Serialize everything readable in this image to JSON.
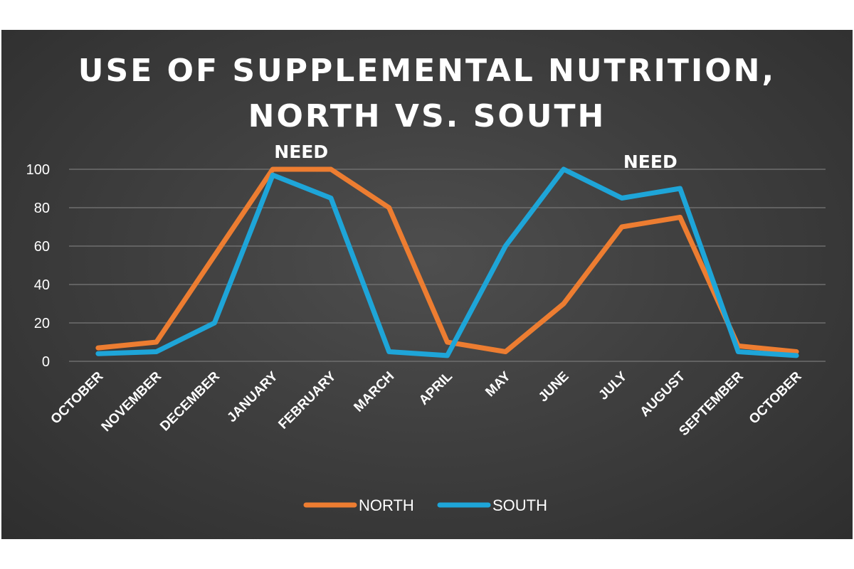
{
  "chart_data": {
    "type": "line",
    "title_lines": [
      "USE OF SUPPLEMENTAL NUTRITION,",
      "NORTH VS. SOUTH"
    ],
    "categories": [
      "OCTOBER",
      "NOVEMBER",
      "DECEMBER",
      "JANUARY",
      "FEBRUARY",
      "MARCH",
      "APRIL",
      "MAY",
      "JUNE",
      "JULY",
      "AUGUST",
      "SEPTEMBER",
      "OCTOBER"
    ],
    "series": [
      {
        "name": "NORTH",
        "color": "#ed7d31",
        "values": [
          7,
          10,
          55,
          100,
          100,
          80,
          10,
          5,
          30,
          70,
          75,
          8,
          5
        ]
      },
      {
        "name": "SOUTH",
        "color": "#1ea5d8",
        "values": [
          4,
          5,
          20,
          97,
          85,
          5,
          3,
          60,
          100,
          85,
          90,
          5,
          3
        ]
      }
    ],
    "ylim": [
      0,
      100
    ],
    "yticks": [
      0,
      20,
      40,
      60,
      80,
      100
    ],
    "grid": true,
    "legend_position": "bottom",
    "annotations": [
      {
        "text": "NEED",
        "category_index": 3
      },
      {
        "text": "NEED",
        "category_index": 9
      }
    ]
  }
}
